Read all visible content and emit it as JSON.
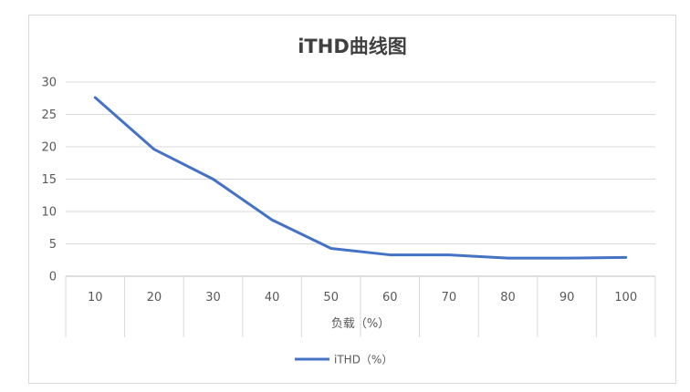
{
  "chart_data": {
    "type": "line",
    "title": "iTHD曲线图",
    "xlabel": "负载（%）",
    "ylabel": "",
    "categories": [
      "10",
      "20",
      "30",
      "40",
      "50",
      "60",
      "70",
      "80",
      "90",
      "100"
    ],
    "series": [
      {
        "name": "iTHD（%）",
        "values": [
          27.6,
          19.6,
          15.0,
          8.7,
          4.3,
          3.3,
          3.3,
          2.8,
          2.8,
          2.9
        ],
        "color": "#4472C4"
      }
    ],
    "ylim": [
      0,
      30
    ],
    "yticks": [
      0,
      5,
      10,
      15,
      20,
      25,
      30
    ],
    "grid": true,
    "legend": "bottom"
  }
}
